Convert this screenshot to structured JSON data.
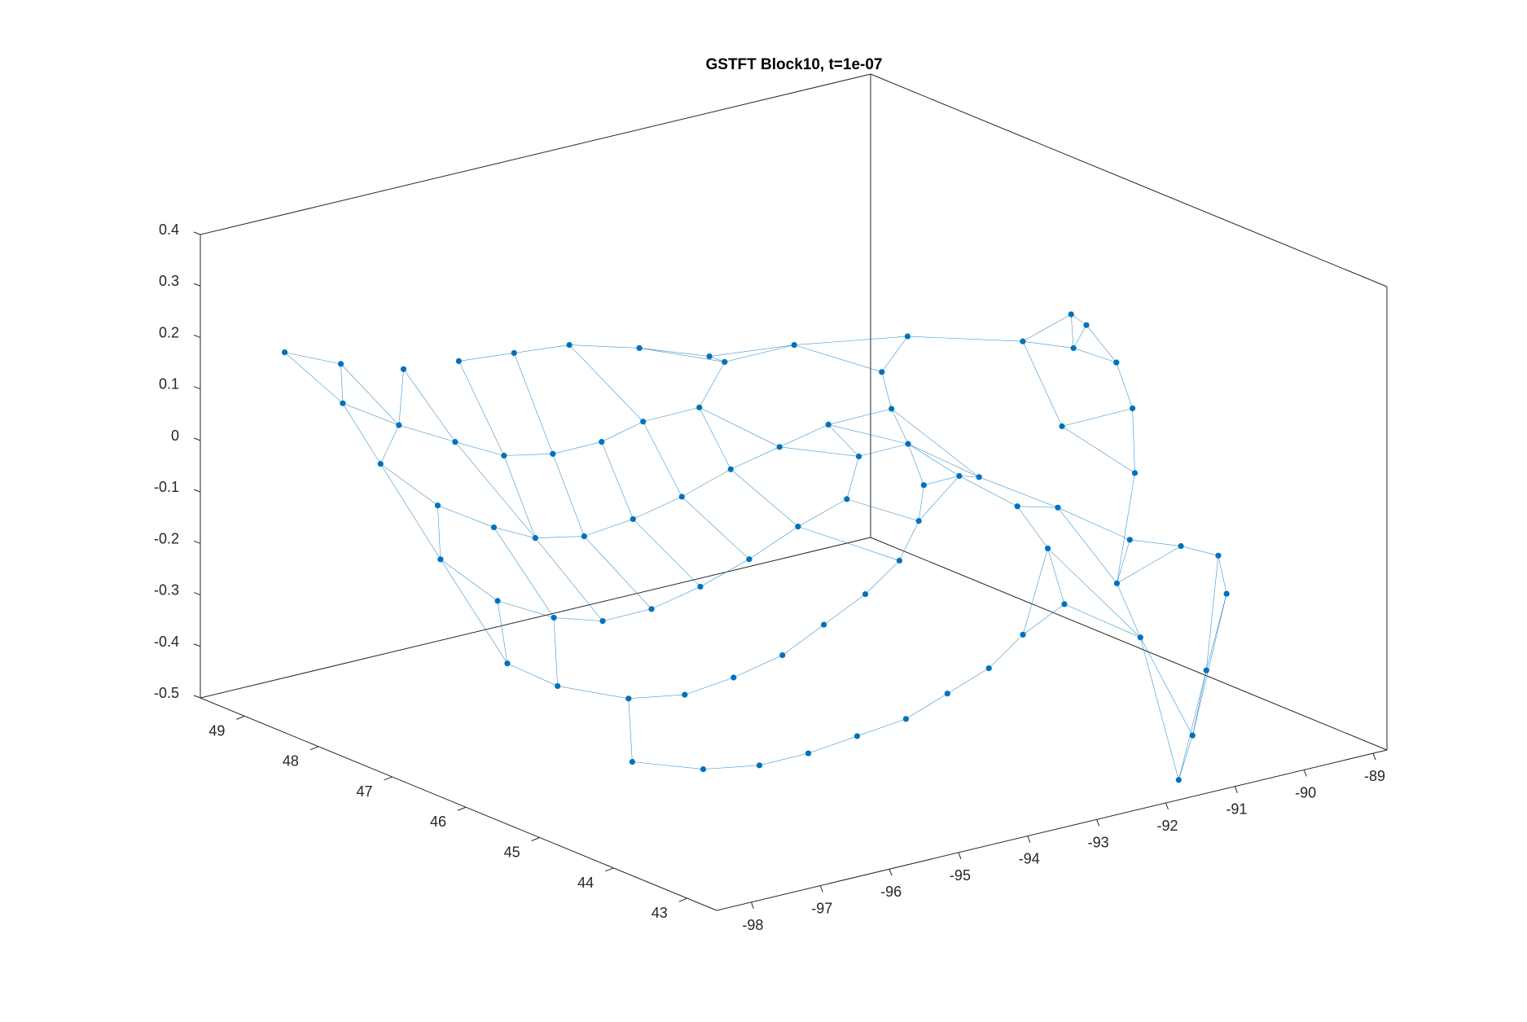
{
  "chart_data": {
    "type": "scatter",
    "title": "GSTFT Block10, t=1e-07",
    "xlabel": "",
    "ylabel": "",
    "zlabel": "",
    "x_ticks": [
      "-98",
      "-97",
      "-96",
      "-95",
      "-94",
      "-93",
      "-92",
      "-91",
      "-90",
      "-89"
    ],
    "y_ticks": [
      "43",
      "44",
      "45",
      "46",
      "47",
      "48",
      "49"
    ],
    "z_ticks": [
      "-0.5",
      "-0.4",
      "-0.3",
      "-0.2",
      "-0.1",
      "0",
      "0.1",
      "0.2",
      "0.3",
      "0.4"
    ],
    "xlim": [
      -98.5,
      -88.8
    ],
    "ylim": [
      42.6,
      49.6
    ],
    "zlim": [
      -0.5,
      0.4
    ],
    "grid": false,
    "marker": "filled circle",
    "connected": true,
    "color": "#0072bd",
    "series": [
      {
        "values": [
          {
            "x": -97.6,
            "y": 49.3,
            "z": 0.16
          },
          {
            "x": -97.0,
            "y": 49.1,
            "z": 0.13
          },
          {
            "x": -96.2,
            "y": 49.0,
            "z": 0.1
          },
          {
            "x": -95.4,
            "y": 49.0,
            "z": 0.09
          },
          {
            "x": -94.6,
            "y": 49.0,
            "z": 0.08
          },
          {
            "x": -93.8,
            "y": 49.0,
            "z": 0.07
          },
          {
            "x": -93.0,
            "y": 48.8,
            "z": 0.05
          },
          {
            "x": -92.2,
            "y": 48.6,
            "z": 0.02
          },
          {
            "x": -92.3,
            "y": 48.3,
            "z": 0.03
          },
          {
            "x": -91.4,
            "y": 48.2,
            "z": 0.04
          },
          {
            "x": -97.4,
            "y": 48.7,
            "z": 0.09
          },
          {
            "x": -96.8,
            "y": 48.5,
            "z": 0.04
          },
          {
            "x": -96.2,
            "y": 48.3,
            "z": 0.0
          },
          {
            "x": -95.6,
            "y": 48.2,
            "z": -0.04
          },
          {
            "x": -95.0,
            "y": 48.1,
            "z": -0.05
          },
          {
            "x": -94.4,
            "y": 48.0,
            "z": -0.04
          },
          {
            "x": -93.8,
            "y": 48.0,
            "z": -0.02
          },
          {
            "x": -93.2,
            "y": 47.8,
            "z": 0.0
          },
          {
            "x": -97.6,
            "y": 48.0,
            "z": 0.02
          },
          {
            "x": -97.2,
            "y": 47.6,
            "z": -0.05
          },
          {
            "x": -96.6,
            "y": 47.4,
            "z": -0.1
          },
          {
            "x": -96.0,
            "y": 47.4,
            "z": -0.14
          },
          {
            "x": -95.4,
            "y": 47.3,
            "z": -0.15
          },
          {
            "x": -94.8,
            "y": 47.2,
            "z": -0.13
          },
          {
            "x": -94.2,
            "y": 47.1,
            "z": -0.1
          },
          {
            "x": -93.6,
            "y": 47.0,
            "z": -0.06
          },
          {
            "x": -93.0,
            "y": 46.9,
            "z": -0.03
          },
          {
            "x": -97.8,
            "y": 47.0,
            "z": -0.1
          },
          {
            "x": -97.4,
            "y": 46.6,
            "z": -0.17
          },
          {
            "x": -96.8,
            "y": 46.4,
            "z": -0.21
          },
          {
            "x": -96.2,
            "y": 46.3,
            "z": -0.23
          },
          {
            "x": -95.6,
            "y": 46.2,
            "z": -0.22
          },
          {
            "x": -95.0,
            "y": 46.1,
            "z": -0.19
          },
          {
            "x": -94.4,
            "y": 46.0,
            "z": -0.15
          },
          {
            "x": -93.8,
            "y": 45.9,
            "z": -0.1
          },
          {
            "x": -93.2,
            "y": 45.8,
            "z": -0.06
          },
          {
            "x": -92.6,
            "y": 46.2,
            "z": -0.02
          },
          {
            "x": -92.4,
            "y": 46.8,
            "z": 0.0
          },
          {
            "x": -97.9,
            "y": 46.0,
            "z": -0.24
          },
          {
            "x": -97.6,
            "y": 45.6,
            "z": -0.27
          },
          {
            "x": -97.0,
            "y": 45.2,
            "z": -0.29
          },
          {
            "x": -96.4,
            "y": 45.0,
            "z": -0.29
          },
          {
            "x": -95.8,
            "y": 44.9,
            "z": -0.27
          },
          {
            "x": -95.2,
            "y": 44.8,
            "z": -0.24
          },
          {
            "x": -94.6,
            "y": 44.8,
            "z": -0.2
          },
          {
            "x": -94.0,
            "y": 44.8,
            "z": -0.16
          },
          {
            "x": -93.4,
            "y": 44.9,
            "z": -0.12
          },
          {
            "x": -92.8,
            "y": 45.2,
            "z": -0.08
          },
          {
            "x": -92.3,
            "y": 45.6,
            "z": -0.05
          },
          {
            "x": -97.8,
            "y": 44.4,
            "z": -0.34
          },
          {
            "x": -97.2,
            "y": 44.0,
            "z": -0.35
          },
          {
            "x": -96.6,
            "y": 43.8,
            "z": -0.35
          },
          {
            "x": -96.0,
            "y": 43.7,
            "z": -0.34
          },
          {
            "x": -95.4,
            "y": 43.6,
            "z": -0.32
          },
          {
            "x": -94.8,
            "y": 43.5,
            "z": -0.3
          },
          {
            "x": -94.2,
            "y": 43.5,
            "z": -0.27
          },
          {
            "x": -93.6,
            "y": 43.5,
            "z": -0.24
          },
          {
            "x": -93.0,
            "y": 43.6,
            "z": -0.2
          },
          {
            "x": -92.4,
            "y": 43.6,
            "z": -0.16
          },
          {
            "x": -92.0,
            "y": 44.2,
            "z": -0.1
          },
          {
            "x": -91.8,
            "y": 44.8,
            "z": -0.06
          },
          {
            "x": -92.0,
            "y": 45.4,
            "z": -0.03
          },
          {
            "x": -92.1,
            "y": 46.0,
            "z": 0.0
          },
          {
            "x": -91.7,
            "y": 46.6,
            "z": 0.02
          },
          {
            "x": -91.2,
            "y": 47.2,
            "z": 0.04
          },
          {
            "x": -90.4,
            "y": 47.6,
            "z": 0.06
          },
          {
            "x": -91.5,
            "y": 45.6,
            "z": -0.06
          },
          {
            "x": -91.0,
            "y": 45.0,
            "z": -0.1
          },
          {
            "x": -90.6,
            "y": 44.4,
            "z": -0.14
          },
          {
            "x": -90.5,
            "y": 43.8,
            "z": -0.12
          },
          {
            "x": -90.6,
            "y": 43.2,
            "z": -0.1
          },
          {
            "x": -90.8,
            "y": 42.9,
            "z": -0.15
          },
          {
            "x": -91.2,
            "y": 42.8,
            "z": -0.28
          },
          {
            "x": -91.4,
            "y": 42.8,
            "z": -0.4
          },
          {
            "x": -91.6,
            "y": 42.8,
            "z": -0.48
          },
          {
            "x": -91.0,
            "y": 44.2,
            "z": -0.2
          },
          {
            "x": -91.3,
            "y": 43.6,
            "z": -0.26
          },
          {
            "x": -90.1,
            "y": 44.8,
            "z": -0.05
          },
          {
            "x": -89.6,
            "y": 45.3,
            "z": 0.03
          },
          {
            "x": -89.3,
            "y": 45.8,
            "z": 0.08
          },
          {
            "x": -89.2,
            "y": 46.3,
            "z": 0.12
          },
          {
            "x": -89.6,
            "y": 46.1,
            "z": 0.1
          },
          {
            "x": -90.3,
            "y": 45.6,
            "z": 0.0
          },
          {
            "x": -89.8,
            "y": 46.6,
            "z": 0.09
          },
          {
            "x": -89.1,
            "y": 46.6,
            "z": 0.12
          }
        ]
      }
    ]
  }
}
